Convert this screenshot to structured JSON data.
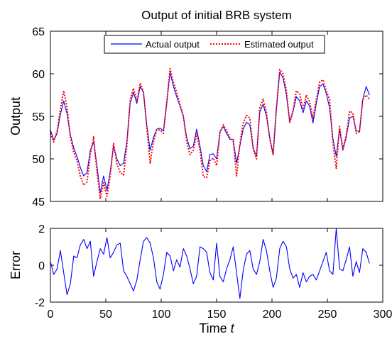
{
  "chart_data": [
    {
      "type": "line",
      "title": "Output of initial BRB system",
      "xlabel": "",
      "ylabel": "Output",
      "xlim": [
        0,
        300
      ],
      "ylim": [
        45,
        65
      ],
      "yticks": [
        45,
        50,
        55,
        60,
        65
      ],
      "xticks": [
        0,
        50,
        100,
        150,
        200,
        250,
        300
      ],
      "grid": false,
      "legend": "top-center",
      "series": [
        {
          "name": "Actual output",
          "color": "#0000ff",
          "style": "solid",
          "x": [
            0,
            3,
            6,
            9,
            12,
            15,
            18,
            21,
            24,
            27,
            30,
            33,
            36,
            39,
            42,
            45,
            48,
            51,
            54,
            57,
            60,
            63,
            66,
            69,
            72,
            75,
            78,
            81,
            84,
            87,
            90,
            93,
            96,
            99,
            102,
            105,
            108,
            111,
            114,
            117,
            120,
            123,
            126,
            129,
            132,
            135,
            138,
            141,
            144,
            147,
            150,
            153,
            156,
            159,
            162,
            165,
            168,
            171,
            174,
            177,
            180,
            183,
            186,
            189,
            192,
            195,
            198,
            201,
            204,
            207,
            210,
            213,
            216,
            219,
            222,
            225,
            228,
            231,
            234,
            237,
            240,
            243,
            246,
            249,
            252,
            255,
            258,
            261,
            264,
            267,
            270,
            273,
            276,
            279,
            282,
            285,
            288
          ],
          "values": [
            53.4,
            52.2,
            53.0,
            55.2,
            56.8,
            55.3,
            52.8,
            51.3,
            50.3,
            49.0,
            48.0,
            48.4,
            51.0,
            52.0,
            49.2,
            46.0,
            48.0,
            46.3,
            48.5,
            51.5,
            50.0,
            49.2,
            49.5,
            52.0,
            56.5,
            57.8,
            56.5,
            58.5,
            57.8,
            54.0,
            51.0,
            52.5,
            53.5,
            53.6,
            53.3,
            56.5,
            60.2,
            58.5,
            57.3,
            56.2,
            55.0,
            52.5,
            51.2,
            51.5,
            53.5,
            51.5,
            49.2,
            48.5,
            50.5,
            50.6,
            50.0,
            53.2,
            53.8,
            53.0,
            52.3,
            52.3,
            49.5,
            51.5,
            53.5,
            54.3,
            54.0,
            51.3,
            50.3,
            55.5,
            56.4,
            55.0,
            52.5,
            50.5,
            55.8,
            60.2,
            59.5,
            57.5,
            54.4,
            55.5,
            57.3,
            56.8,
            55.4,
            56.8,
            56.2,
            54.2,
            56.5,
            58.5,
            58.8,
            57.7,
            56.0,
            52.4,
            50.3,
            53.5,
            51.0,
            52.5,
            54.8,
            55.0,
            53.3,
            53.2,
            57.0,
            58.5,
            57.5
          ]
        },
        {
          "name": "Estimated output",
          "color": "#ff0000",
          "style": "dotted",
          "x": [
            0,
            3,
            6,
            9,
            12,
            15,
            18,
            21,
            24,
            27,
            30,
            33,
            36,
            39,
            42,
            45,
            48,
            51,
            54,
            57,
            60,
            63,
            66,
            69,
            72,
            75,
            78,
            81,
            84,
            87,
            90,
            93,
            96,
            99,
            102,
            105,
            108,
            111,
            114,
            117,
            120,
            123,
            126,
            129,
            132,
            135,
            138,
            141,
            144,
            147,
            150,
            153,
            156,
            159,
            162,
            165,
            168,
            171,
            174,
            177,
            180,
            183,
            186,
            189,
            192,
            195,
            198,
            201,
            204,
            207,
            210,
            213,
            216,
            219,
            222,
            225,
            228,
            231,
            234,
            237,
            240,
            243,
            246,
            249,
            252,
            255,
            258,
            261,
            264,
            267,
            270,
            273,
            276,
            279,
            282,
            285,
            288
          ],
          "values": [
            53.0,
            52.0,
            53.3,
            55.8,
            58.0,
            56.0,
            52.5,
            50.8,
            49.8,
            48.0,
            46.9,
            47.3,
            50.5,
            52.6,
            48.5,
            45.3,
            47.2,
            45.6,
            48.0,
            51.8,
            49.4,
            48.4,
            48.1,
            51.5,
            57.0,
            58.3,
            56.8,
            58.9,
            57.9,
            53.7,
            49.5,
            52.0,
            53.4,
            53.4,
            53.0,
            56.7,
            60.6,
            59.0,
            57.8,
            56.4,
            55.0,
            52.0,
            50.5,
            51.0,
            53.0,
            51.0,
            47.9,
            47.8,
            49.8,
            50.1,
            49.2,
            53.0,
            54.0,
            53.3,
            52.5,
            52.1,
            48.0,
            51.8,
            54.2,
            55.1,
            54.8,
            51.2,
            50.0,
            56.0,
            57.0,
            55.5,
            52.3,
            50.5,
            56.0,
            60.5,
            60.0,
            58.0,
            54.2,
            55.7,
            58.0,
            57.6,
            55.8,
            57.5,
            56.7,
            54.8,
            57.0,
            59.0,
            59.3,
            58.0,
            57.0,
            51.8,
            48.9,
            53.8,
            51.2,
            52.8,
            55.6,
            55.4,
            53.0,
            53.2,
            57.0,
            57.5,
            57.0
          ]
        }
      ]
    },
    {
      "type": "line",
      "title": "",
      "xlabel": "Time t",
      "ylabel": "Error",
      "xlim": [
        0,
        300
      ],
      "ylim": [
        -2,
        2
      ],
      "yticks": [
        -2,
        0,
        2
      ],
      "xticks": [
        0,
        50,
        100,
        150,
        200,
        250,
        300
      ],
      "xtick_labels": [
        "0",
        "50",
        "100",
        "150",
        "200",
        "250",
        "300"
      ],
      "grid": false,
      "series": [
        {
          "color": "#0000ff",
          "style": "solid",
          "x": [
            0,
            3,
            6,
            9,
            12,
            15,
            18,
            21,
            24,
            27,
            30,
            33,
            36,
            39,
            42,
            45,
            48,
            51,
            54,
            57,
            60,
            63,
            66,
            69,
            72,
            75,
            78,
            81,
            84,
            87,
            90,
            93,
            96,
            99,
            102,
            105,
            108,
            111,
            114,
            117,
            120,
            123,
            126,
            129,
            132,
            135,
            138,
            141,
            144,
            147,
            150,
            153,
            156,
            159,
            162,
            165,
            168,
            171,
            174,
            177,
            180,
            183,
            186,
            189,
            192,
            195,
            198,
            201,
            204,
            207,
            210,
            213,
            216,
            219,
            222,
            225,
            228,
            231,
            234,
            237,
            240,
            243,
            246,
            249,
            252,
            255,
            258,
            261,
            264,
            267,
            270,
            273,
            276,
            279,
            282,
            285,
            288
          ],
          "values": [
            0.2,
            -0.5,
            -0.2,
            0.8,
            -0.4,
            -1.6,
            -1.0,
            0.5,
            0.4,
            1.1,
            1.4,
            0.9,
            1.3,
            -0.6,
            0.2,
            0.9,
            0.6,
            1.5,
            0.4,
            0.7,
            1.1,
            1.2,
            -0.3,
            -0.6,
            -1.0,
            -1.4,
            -0.8,
            0.3,
            1.3,
            1.5,
            1.2,
            0.4,
            -0.9,
            -1.3,
            -0.5,
            0.7,
            0.5,
            -0.3,
            0.3,
            -0.1,
            0.9,
            0.5,
            -0.2,
            -1.0,
            -0.6,
            1.0,
            0.9,
            0.7,
            -0.4,
            -0.8,
            1.2,
            -0.6,
            -0.9,
            -0.2,
            0.3,
            1.0,
            -0.4,
            -1.8,
            -0.3,
            0.6,
            0.8,
            -0.2,
            -0.5,
            0.2,
            1.4,
            0.8,
            -0.3,
            -1.2,
            -0.7,
            0.9,
            1.3,
            1.0,
            -0.2,
            -0.7,
            -0.5,
            -1.2,
            -0.4,
            -0.9,
            -0.6,
            -0.5,
            -0.8,
            -0.3,
            0.2,
            0.7,
            -0.3,
            -0.5,
            2.0,
            -0.2,
            -0.3,
            0.3,
            1.0,
            -0.6,
            0.2,
            -0.4,
            0.9,
            0.7,
            0.1
          ]
        }
      ]
    }
  ]
}
